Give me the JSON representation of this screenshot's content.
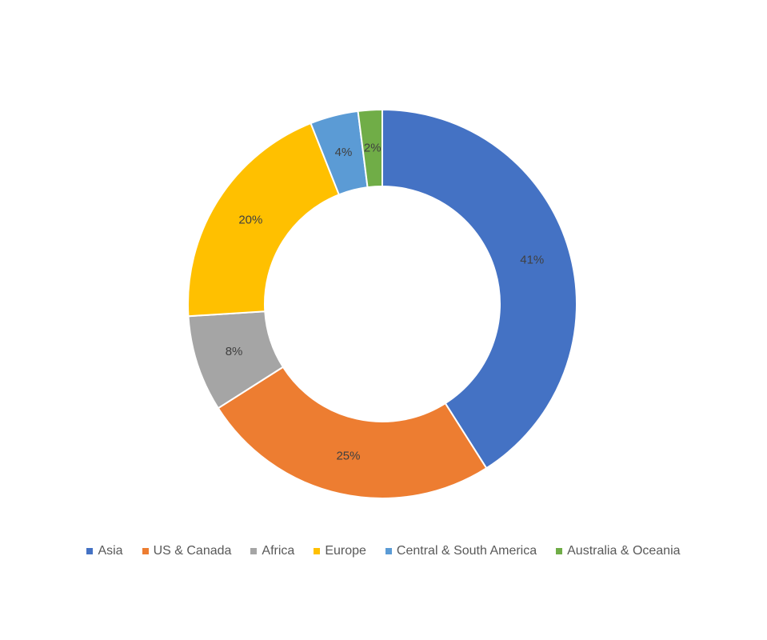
{
  "chart_data": {
    "type": "donut",
    "categories": [
      "Asia",
      "US & Canada",
      "Africa",
      "Europe",
      "Central & South America",
      "Australia & Oceania"
    ],
    "values": [
      41,
      25,
      8,
      20,
      4,
      2
    ],
    "value_labels": [
      "41%",
      "25%",
      "8%",
      "20%",
      "4%",
      "2%"
    ],
    "colors": [
      "#4472c4",
      "#ed7d31",
      "#a5a5a5",
      "#ffc000",
      "#5b9bd5",
      "#70ad47"
    ],
    "legend": "bottom"
  }
}
